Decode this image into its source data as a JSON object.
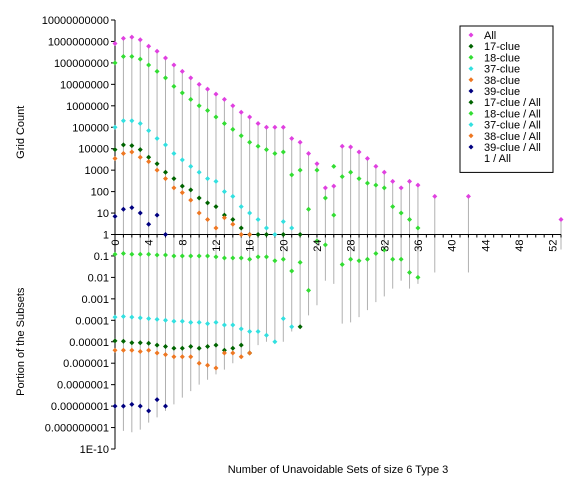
{
  "chart_data": {
    "type": "scatter",
    "xlabel": "Number of Unavoidable Sets of size 6 Type 3",
    "ylabel_top": "Grid Count",
    "ylabel_bottom": "Portion of the Subsets",
    "x_range": [
      0,
      53
    ],
    "x_ticks": [
      "0",
      "4",
      "8",
      "12",
      "16",
      "20",
      "24",
      "28",
      "32",
      "36",
      "40",
      "44",
      "48",
      "52"
    ],
    "y_ticks": [
      "10000000000",
      "1000000000",
      "100000000",
      "10000000",
      "1000000",
      "100000",
      "10000",
      "1000",
      "100",
      "10",
      "1",
      "0.1",
      "0.01",
      "0.001",
      "0.0001",
      "0.00001",
      "0.000001",
      "0.0000001",
      "0.00000001",
      "0.000000001",
      "1E-10"
    ],
    "legend_position": "top-right",
    "legend": [
      {
        "name": "All",
        "color": "#e040e0"
      },
      {
        "name": "17-clue",
        "color": "#006400"
      },
      {
        "name": "18-clue",
        "color": "#33dd33"
      },
      {
        "name": "37-clue",
        "color": "#33e0e0"
      },
      {
        "name": "38-clue",
        "color": "#ee7722"
      },
      {
        "name": "39-clue",
        "color": "#000080"
      },
      {
        "name": "17-clue / All",
        "color": "#006400"
      },
      {
        "name": "18-clue / All",
        "color": "#33dd33"
      },
      {
        "name": "37-clue / All",
        "color": "#33e0e0"
      },
      {
        "name": "38-clue / All",
        "color": "#ee7722"
      },
      {
        "name": "39-clue / All",
        "color": "#000080"
      },
      {
        "name": "1 / All",
        "color": "#aaaaaa"
      }
    ],
    "series": [
      {
        "name": "All",
        "color": "#e040e0",
        "x": [
          0,
          1,
          2,
          3,
          4,
          5,
          6,
          7,
          8,
          9,
          10,
          11,
          12,
          13,
          14,
          15,
          16,
          17,
          18,
          19,
          20,
          21,
          22,
          23,
          24,
          25,
          26,
          27,
          28,
          29,
          30,
          31,
          32,
          33,
          34,
          35,
          36,
          38,
          42,
          53
        ],
        "y": [
          800000000.0,
          1400000000.0,
          1600000000.0,
          1200000000.0,
          600000000.0,
          350000000.0,
          170000000.0,
          80000000.0,
          40000000.0,
          20000000.0,
          10000000.0,
          6000000.0,
          3500000.0,
          2000000.0,
          1000000.0,
          500000.0,
          300000.0,
          150000.0,
          100000.0,
          100000.0,
          100000.0,
          30000.0,
          20000.0,
          6000,
          2000,
          150,
          180,
          13000.0,
          12000.0,
          7000,
          3500,
          1500,
          800,
          300,
          150,
          300,
          200,
          60,
          60,
          5
        ]
      },
      {
        "name": "17-clue",
        "color": "#006400",
        "x": [
          0,
          1,
          2,
          3,
          4,
          5,
          6,
          7,
          8,
          9,
          10,
          11,
          12,
          13,
          14,
          15,
          16,
          17,
          18,
          20,
          22
        ],
        "y": [
          9000,
          15000.0,
          14000.0,
          9000,
          4000,
          2000,
          800,
          400,
          180,
          120,
          50,
          30,
          20,
          8,
          5,
          2,
          1,
          1,
          1,
          1,
          1
        ]
      },
      {
        "name": "18-clue",
        "color": "#33dd33",
        "x": [
          0,
          1,
          2,
          3,
          4,
          5,
          6,
          7,
          8,
          9,
          10,
          11,
          12,
          13,
          14,
          15,
          16,
          17,
          18,
          19,
          20,
          21,
          22,
          23,
          24,
          25,
          26,
          27,
          28,
          29,
          30,
          31,
          32,
          33,
          34,
          35,
          36
        ],
        "y": [
          100000000.0,
          200000000.0,
          200000000.0,
          150000000.0,
          80000000.0,
          40000000.0,
          20000000.0,
          8000000.0,
          4000000.0,
          2000000.0,
          1000000.0,
          600000.0,
          300000.0,
          150000.0,
          80000.0,
          40000.0,
          20000.0,
          13000.0,
          9000,
          6000,
          7000,
          600,
          1000,
          15,
          1000,
          50,
          1500,
          500,
          800,
          400,
          250,
          200,
          150,
          20,
          10,
          5,
          2
        ]
      },
      {
        "name": "37-clue",
        "color": "#33e0e0",
        "x": [
          0,
          1,
          2,
          3,
          4,
          5,
          6,
          7,
          8,
          9,
          10,
          11,
          12,
          13,
          14,
          15,
          16,
          17,
          18,
          19,
          20,
          21
        ],
        "y": [
          100000.0,
          200000.0,
          200000.0,
          150000.0,
          70000.0,
          30000.0,
          15000.0,
          6000,
          3000,
          1500,
          800,
          400,
          300,
          100,
          60,
          20,
          10,
          5,
          2,
          1,
          4,
          2
        ]
      },
      {
        "name": "38-clue",
        "color": "#ee7722",
        "x": [
          0,
          1,
          2,
          3,
          4,
          5,
          6,
          7,
          8,
          9,
          10,
          11,
          12,
          13,
          14,
          15,
          16
        ],
        "y": [
          3500,
          6000,
          7000,
          4000,
          2500,
          1000,
          400,
          150,
          90,
          40,
          10,
          5,
          2,
          6,
          3,
          1,
          1
        ]
      },
      {
        "name": "39-clue",
        "color": "#000080",
        "x": [
          0,
          1,
          2,
          3,
          4,
          5,
          6
        ],
        "y": [
          7,
          15,
          18,
          10,
          3,
          8,
          1
        ]
      },
      {
        "name": "17-clue / All",
        "color": "#006400",
        "x": [
          0,
          1,
          2,
          3,
          4,
          5,
          6,
          7,
          8,
          9,
          10,
          11,
          12,
          13,
          14,
          15,
          16,
          22
        ],
        "y": [
          1.1e-05,
          1.05e-05,
          9e-06,
          9e-06,
          8.5e-06,
          7e-06,
          6e-06,
          5e-06,
          5e-06,
          6e-06,
          5e-06,
          6e-06,
          7e-06,
          4e-06,
          5e-06,
          7e-06,
          3e-06,
          5e-05
        ]
      },
      {
        "name": "18-clue / All",
        "color": "#33dd33",
        "x": [
          0,
          1,
          2,
          3,
          4,
          5,
          6,
          7,
          8,
          9,
          10,
          11,
          12,
          13,
          14,
          15,
          16,
          17,
          18,
          19,
          20,
          21,
          22,
          23,
          24,
          25,
          26,
          27,
          28,
          29,
          30,
          31,
          32,
          33,
          34,
          35,
          36
        ],
        "y": [
          0.12,
          0.13,
          0.12,
          0.12,
          0.12,
          0.11,
          0.11,
          0.1,
          0.1,
          0.1,
          0.1,
          0.1,
          0.09,
          0.08,
          0.08,
          0.08,
          0.07,
          0.09,
          0.09,
          0.06,
          0.07,
          0.02,
          0.05,
          0.0025,
          0.5,
          0.33,
          8,
          0.04,
          0.07,
          0.06,
          0.07,
          0.13,
          0.19,
          0.07,
          0.07,
          0.017,
          0.01
        ]
      },
      {
        "name": "37-clue / All",
        "color": "#33e0e0",
        "x": [
          0,
          1,
          2,
          3,
          4,
          5,
          6,
          7,
          8,
          9,
          10,
          11,
          12,
          13,
          14,
          15,
          16,
          17,
          18,
          19,
          20,
          21
        ],
        "y": [
          0.00014,
          0.00015,
          0.00014,
          0.00013,
          0.00012,
          0.00011,
          0.0001,
          9e-05,
          9e-05,
          8e-05,
          8e-05,
          7e-05,
          8e-05,
          6e-05,
          6e-05,
          4e-05,
          3e-05,
          3e-05,
          2e-05,
          1e-05,
          0.00012,
          5e-05
        ]
      },
      {
        "name": "38-clue / All",
        "color": "#ee7722",
        "x": [
          0,
          1,
          2,
          3,
          4,
          5,
          6,
          7,
          8,
          9,
          10,
          11,
          12,
          13,
          14,
          15,
          16
        ],
        "y": [
          4e-06,
          4e-06,
          4e-06,
          3.5e-06,
          4e-06,
          3e-06,
          2.5e-06,
          2e-06,
          2e-06,
          2e-06,
          1e-06,
          8e-07,
          6e-07,
          3e-06,
          3e-06,
          2e-06,
          3e-06
        ]
      },
      {
        "name": "39-clue / All",
        "color": "#000080",
        "x": [
          0,
          1,
          2,
          3,
          4,
          5,
          6
        ],
        "y": [
          1e-08,
          1e-08,
          1.2e-08,
          1e-08,
          6e-09,
          2e-08,
          1e-08
        ]
      },
      {
        "name": "1 / All",
        "color": "#aaaaaa",
        "x": [
          0,
          1,
          2,
          3,
          4,
          5,
          6,
          7,
          8,
          9,
          10,
          11,
          12,
          13,
          14,
          15,
          16,
          17,
          18,
          19,
          20,
          21,
          22,
          23,
          24,
          25,
          26,
          27,
          28,
          29,
          30,
          31,
          32,
          33,
          34,
          35,
          36,
          38,
          42,
          53
        ],
        "y": [
          1.25e-09,
          7e-10,
          6e-10,
          8e-10,
          1.7e-09,
          3e-09,
          6e-09,
          1.2e-08,
          2.5e-08,
          5e-08,
          1e-07,
          1.7e-07,
          3e-07,
          5e-07,
          1e-06,
          2e-06,
          3.3e-06,
          7e-06,
          1e-05,
          1e-05,
          1e-05,
          3e-05,
          5e-05,
          0.00017,
          0.0005,
          0.007,
          0.005,
          7e-05,
          8e-05,
          0.00014,
          0.0003,
          0.0007,
          0.0013,
          0.003,
          0.007,
          0.003,
          0.005,
          0.017,
          0.017,
          0.2
        ]
      }
    ]
  }
}
